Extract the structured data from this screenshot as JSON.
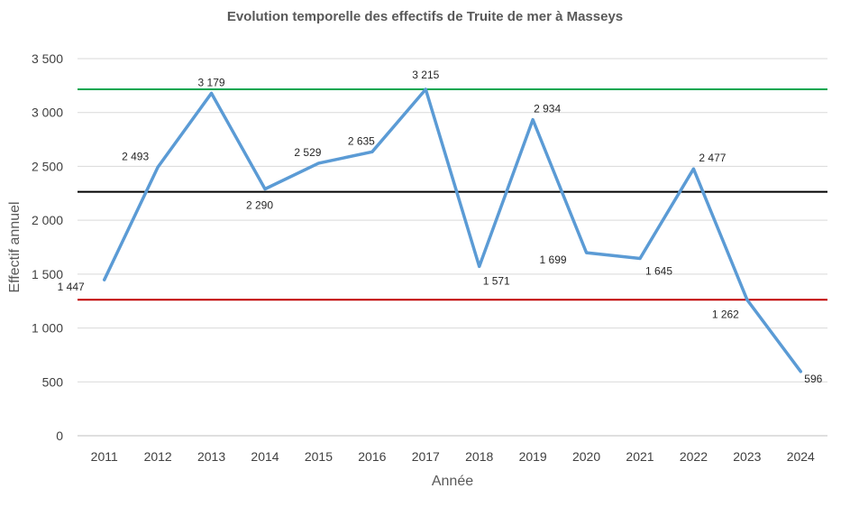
{
  "chart_data": {
    "type": "line",
    "title": "Evolution temporelle des effectifs de Truite de mer à Masseys",
    "xlabel": "Année",
    "ylabel": "Effectif annuel",
    "ylim": [
      0,
      3500
    ],
    "y_ticks": [
      "0",
      "500",
      "1 000",
      "1 500",
      "2 000",
      "2 500",
      "3 000",
      "3 500"
    ],
    "grid": true,
    "legend": "none",
    "categories": [
      "2011",
      "2012",
      "2013",
      "2014",
      "2015",
      "2016",
      "2017",
      "2018",
      "2019",
      "2020",
      "2021",
      "2022",
      "2023",
      "2024"
    ],
    "series": [
      {
        "values": [
          1447,
          2493,
          3179,
          2290,
          2529,
          2635,
          3215,
          1571,
          2934,
          1699,
          1645,
          2477,
          1262,
          596
        ],
        "labels": [
          "1 447",
          "2 493",
          "3 179",
          "2 290",
          "2 529",
          "2 635",
          "3 215",
          "1 571",
          "2 934",
          "1 699",
          "1 645",
          "2 477",
          "1 262",
          "596"
        ],
        "color": "#5b9bd5"
      }
    ],
    "reference_lines": [
      {
        "value": 3215,
        "color": "#00a650"
      },
      {
        "value": 2264,
        "color": "#000000"
      },
      {
        "value": 1262,
        "color": "#c00000"
      }
    ]
  }
}
